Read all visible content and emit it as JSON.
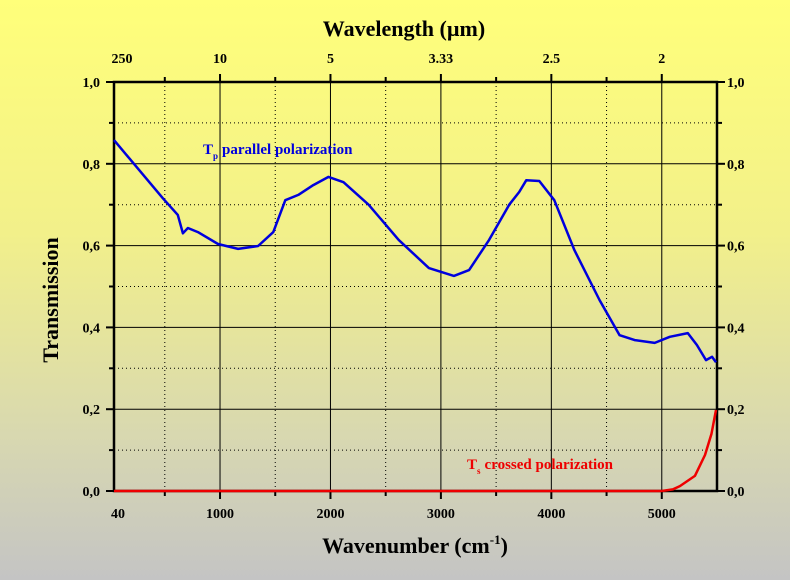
{
  "chart_data": {
    "type": "line",
    "top_axis_title": "Wavelength (µm)",
    "xlabel": "Wavenumber (cm",
    "xlabel_sup": "-1",
    "xlabel_end": ")",
    "ylabel": "Transmission",
    "xlim": [
      40,
      5500
    ],
    "ylim": [
      0,
      1.0
    ],
    "x_ticks": [
      {
        "v": 40,
        "label": "40"
      },
      {
        "v": 1000,
        "label": "1000"
      },
      {
        "v": 2000,
        "label": "2000"
      },
      {
        "v": 3000,
        "label": "3000"
      },
      {
        "v": 4000,
        "label": "4000"
      },
      {
        "v": 5000,
        "label": "5000"
      }
    ],
    "top_ticks": [
      {
        "v": 40,
        "label": "250"
      },
      {
        "v": 1000,
        "label": "10"
      },
      {
        "v": 2000,
        "label": "5"
      },
      {
        "v": 3000,
        "label": "3.33"
      },
      {
        "v": 4000,
        "label": "2.5"
      },
      {
        "v": 5000,
        "label": "2"
      }
    ],
    "y_ticks": [
      {
        "v": 0,
        "label": "0,0"
      },
      {
        "v": 0.2,
        "label": "0,2"
      },
      {
        "v": 0.4,
        "label": "0,4"
      },
      {
        "v": 0.6,
        "label": "0,6"
      },
      {
        "v": 0.8,
        "label": "0,8"
      },
      {
        "v": 1.0,
        "label": "1,0"
      }
    ],
    "grid": true,
    "series": [
      {
        "name": "T",
        "name_sub": "p",
        "name_rest": "parallel polarization",
        "color": "#0000dd",
        "x": [
          40,
          482,
          618,
          664,
          709,
          800,
          982,
          1164,
          1345,
          1482,
          1591,
          1709,
          1845,
          1982,
          2118,
          2345,
          2618,
          2891,
          3118,
          3255,
          3436,
          3618,
          3709,
          3773,
          3891,
          4027,
          4209,
          4436,
          4618,
          4755,
          4936,
          5073,
          5236,
          5318,
          5400,
          5455,
          5491
        ],
        "y": [
          0.858,
          0.716,
          0.675,
          0.63,
          0.643,
          0.633,
          0.604,
          0.592,
          0.599,
          0.633,
          0.711,
          0.724,
          0.748,
          0.768,
          0.755,
          0.7,
          0.614,
          0.545,
          0.526,
          0.54,
          0.614,
          0.7,
          0.731,
          0.76,
          0.758,
          0.711,
          0.589,
          0.467,
          0.381,
          0.369,
          0.362,
          0.377,
          0.386,
          0.357,
          0.32,
          0.328,
          0.315
        ]
      },
      {
        "name": "T",
        "name_sub": "s",
        "name_rest": "crossed polarization",
        "color": "#ee0000",
        "x": [
          40,
          5000,
          5100,
          5164,
          5300,
          5391,
          5450,
          5491
        ],
        "y": [
          0,
          0,
          0.004,
          0.012,
          0.037,
          0.088,
          0.14,
          0.198
        ]
      }
    ]
  }
}
